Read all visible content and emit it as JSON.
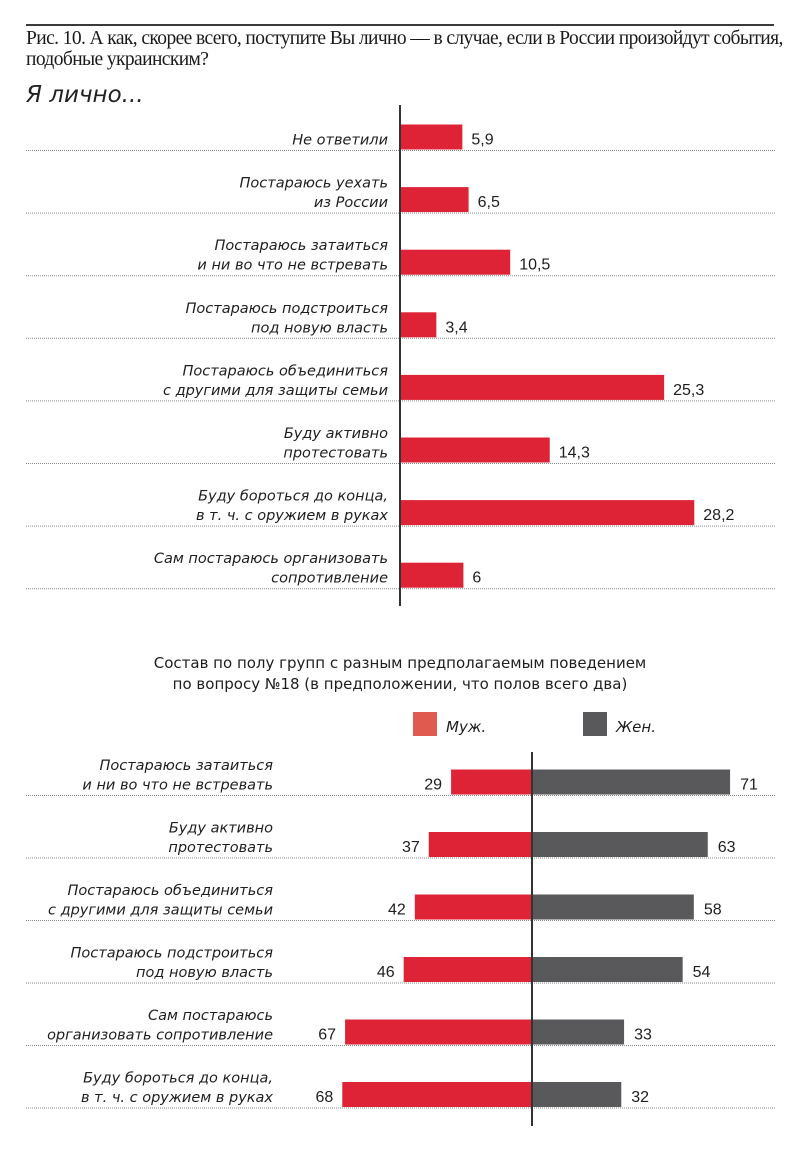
{
  "header": {
    "caption": "Рис. 10. А как, скорее всего, поступите Вы лично — в случае, если в России произойдут события, подобные украинским?",
    "subtitle": "Я лично..."
  },
  "colors": {
    "bar_red": "#dd2335",
    "legend_men": "#e05a50",
    "bar_gray": "#59595b",
    "axis": "#333333",
    "gridline": "#8a8a8a"
  },
  "chart_data": [
    {
      "type": "bar",
      "orientation": "horizontal",
      "title": "Я лично...",
      "categories": [
        [
          "Не ответили"
        ],
        [
          "Постараюсь уехать",
          "из России"
        ],
        [
          "Постараюсь затаиться",
          "и ни во что не встревать"
        ],
        [
          "Постараюсь подстроиться",
          "под новую власть"
        ],
        [
          "Постараюсь объединиться",
          "с другими для защиты семьи"
        ],
        [
          "Буду активно",
          "протестовать"
        ],
        [
          "Буду бороться до конца,",
          "в т. ч. с оружием в руках"
        ],
        [
          "Сам постараюсь организовать",
          "сопротивление"
        ]
      ],
      "values": [
        5.9,
        6.5,
        10.5,
        3.4,
        25.3,
        14.3,
        28.2,
        6
      ],
      "value_labels": [
        "5,9",
        "6,5",
        "10,5",
        "3,4",
        "25,3",
        "14,3",
        "28,2",
        "6"
      ],
      "xlabel": "",
      "ylabel": "",
      "xlim": [
        0,
        30
      ],
      "grid": "dotted row separators",
      "unit": "%"
    },
    {
      "type": "bar",
      "orientation": "diverging-horizontal",
      "title": "Состав по полу групп с разным предполагаемым поведением по вопросу №18 (в предположении, что полов всего два)",
      "title_lines": [
        "Состав по полу групп с разным предполагаемым поведением",
        "по вопросу №18 (в предположении, что полов всего два)"
      ],
      "legend": [
        "Муж.",
        "Жен."
      ],
      "legend_position": "top-right",
      "categories": [
        [
          "Постараюсь затаиться",
          "и ни во что не встревать"
        ],
        [
          "Буду активно",
          "протестовать"
        ],
        [
          "Постараюсь объединиться",
          "с другими для защиты семьи"
        ],
        [
          "Постараюсь подстроиться",
          "под новую власть"
        ],
        [
          "Сам постараюсь",
          "организовать сопротивление"
        ],
        [
          "Буду бороться до конца,",
          "в т. ч. с оружием в руках"
        ]
      ],
      "series": [
        {
          "name": "Муж.",
          "values": [
            29,
            37,
            42,
            46,
            67,
            68
          ]
        },
        {
          "name": "Жен.",
          "values": [
            71,
            63,
            58,
            54,
            33,
            32
          ]
        }
      ],
      "xlim": [
        -100,
        100
      ],
      "grid": "dotted row separators",
      "unit": "%"
    }
  ]
}
